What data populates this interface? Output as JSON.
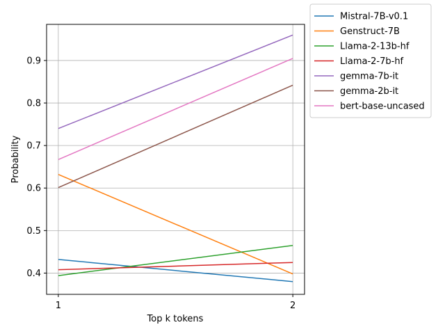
{
  "chart_data": {
    "type": "line",
    "title": "",
    "xlabel": "Top k tokens",
    "ylabel": "Probability",
    "x": [
      1,
      2
    ],
    "xticks": [
      "1",
      "2"
    ],
    "xlim": [
      0.95,
      2.05
    ],
    "ylim": [
      0.35,
      0.985
    ],
    "yticks": [
      "0.4",
      "0.5",
      "0.6",
      "0.7",
      "0.8",
      "0.9"
    ],
    "grid": true,
    "legend_placement": "outside upper right",
    "series": [
      {
        "name": "Mistral-7B-v0.1",
        "values": [
          0.432,
          0.38
        ],
        "color": "#1f77b4"
      },
      {
        "name": "Genstruct-7B",
        "values": [
          0.632,
          0.398
        ],
        "color": "#ff7f0e"
      },
      {
        "name": "Llama-2-13b-hf",
        "values": [
          0.394,
          0.465
        ],
        "color": "#2ca02c"
      },
      {
        "name": "Llama-2-7b-hf",
        "values": [
          0.408,
          0.425
        ],
        "color": "#d62728"
      },
      {
        "name": "gemma-7b-it",
        "values": [
          0.74,
          0.96
        ],
        "color": "#9467bd"
      },
      {
        "name": "gemma-2b-it",
        "values": [
          0.601,
          0.842
        ],
        "color": "#8c564b"
      },
      {
        "name": "bert-base-uncased",
        "values": [
          0.667,
          0.905
        ],
        "color": "#e377c2"
      }
    ]
  }
}
